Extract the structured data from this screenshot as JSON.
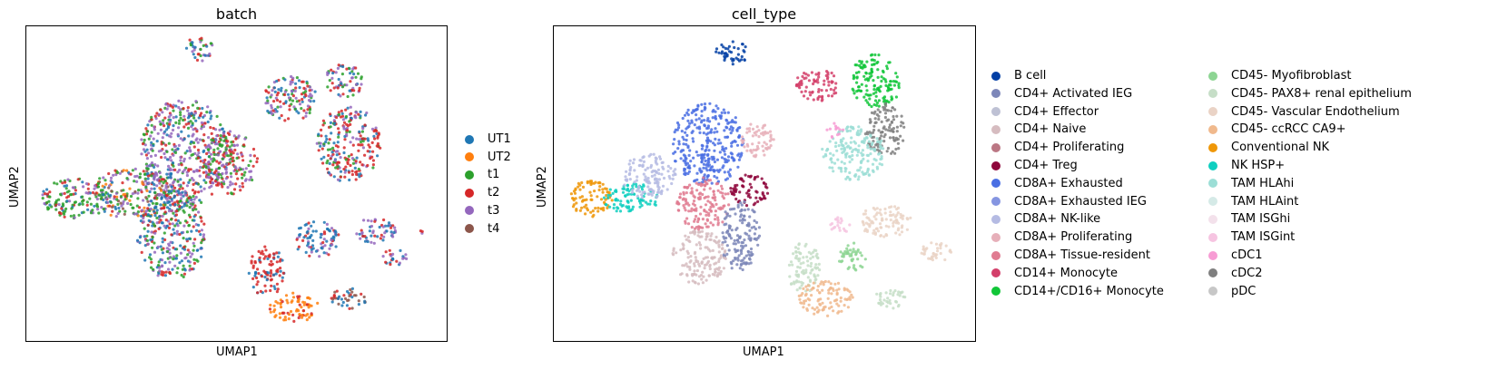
{
  "chart_data": [
    {
      "type": "scatter",
      "title": "batch",
      "xlabel": "UMAP1",
      "ylabel": "UMAP2",
      "legend_position": "right",
      "grid": false,
      "series": [
        {
          "name": "UT1",
          "color": "#1f77b4"
        },
        {
          "name": "UT2",
          "color": "#ff7f0e"
        },
        {
          "name": "t1",
          "color": "#2ca02c"
        },
        {
          "name": "t2",
          "color": "#d62728"
        },
        {
          "name": "t3",
          "color": "#9467bd"
        },
        {
          "name": "t4",
          "color": "#8c564b"
        }
      ]
    },
    {
      "type": "scatter",
      "title": "cell_type",
      "xlabel": "UMAP1",
      "ylabel": "UMAP2",
      "legend_position": "right",
      "grid": false,
      "series": [
        {
          "name": "B cell",
          "color": "#023fa5"
        },
        {
          "name": "CD4+ Activated IEG",
          "color": "#7d87b9"
        },
        {
          "name": "CD4+ Effector",
          "color": "#bec1d4"
        },
        {
          "name": "CD4+ Naive",
          "color": "#d6bcc0"
        },
        {
          "name": "CD4+ Proliferating",
          "color": "#bb7784"
        },
        {
          "name": "CD4+ Treg",
          "color": "#8e063b"
        },
        {
          "name": "CD8A+ Exhausted",
          "color": "#4a6fe3"
        },
        {
          "name": "CD8A+ Exhausted IEG",
          "color": "#8595e1"
        },
        {
          "name": "CD8A+ NK-like",
          "color": "#b5bbe3"
        },
        {
          "name": "CD8A+ Proliferating",
          "color": "#e6afb9"
        },
        {
          "name": "CD8A+ Tissue-resident",
          "color": "#e07b91"
        },
        {
          "name": "CD14+ Monocyte",
          "color": "#d33f6a"
        },
        {
          "name": "CD14+/CD16+ Monocyte",
          "color": "#11c638"
        },
        {
          "name": "CD45- Myofibroblast",
          "color": "#8dd593"
        },
        {
          "name": "CD45- PAX8+ renal epithelium",
          "color": "#c6dec7"
        },
        {
          "name": "CD45- Vascular Endothelium",
          "color": "#ead3c6"
        },
        {
          "name": "CD45- ccRCC CA9+",
          "color": "#f0b98d"
        },
        {
          "name": "Conventional NK",
          "color": "#ef9708"
        },
        {
          "name": "NK HSP+",
          "color": "#0fcfc0"
        },
        {
          "name": "TAM HLAhi",
          "color": "#9cded6"
        },
        {
          "name": "TAM HLAint",
          "color": "#d5eae7"
        },
        {
          "name": "TAM ISGhi",
          "color": "#f3e1eb"
        },
        {
          "name": "TAM ISGint",
          "color": "#f6c4e1"
        },
        {
          "name": "cDC1",
          "color": "#f79cd4"
        },
        {
          "name": "cDC2",
          "color": "#7f7f7f"
        },
        {
          "name": "pDC",
          "color": "#c7c7c7"
        }
      ]
    }
  ]
}
